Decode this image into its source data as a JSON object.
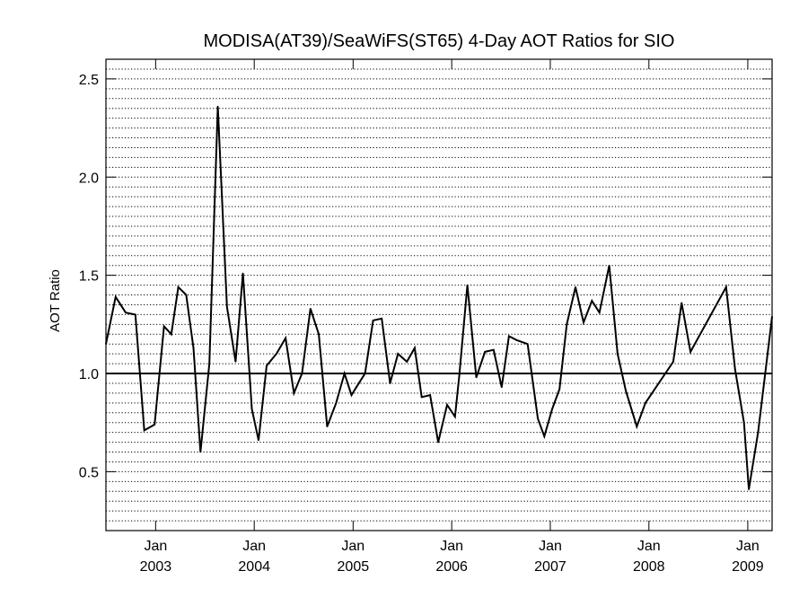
{
  "chart_data": {
    "type": "line",
    "title": "MODISA(AT39)/SeaWiFS(ST65) 4-Day AOT Ratios for SIO",
    "xlabel": "",
    "ylabel": "AOT Ratio",
    "xlim": [
      "2002-07-01",
      "2009-04-01"
    ],
    "ylim": [
      0.2,
      2.6
    ],
    "y_ticks": [
      0.5,
      1.0,
      1.5,
      2.0,
      2.5
    ],
    "y_tick_labels": [
      "0.5",
      "1.0",
      "1.5",
      "2.0",
      "2.5"
    ],
    "x_ticks": [
      {
        "date": "2003-01-01",
        "month": "Jan",
        "year": "2003"
      },
      {
        "date": "2004-01-01",
        "month": "Jan",
        "year": "2004"
      },
      {
        "date": "2005-01-01",
        "month": "Jan",
        "year": "2005"
      },
      {
        "date": "2006-01-01",
        "month": "Jan",
        "year": "2006"
      },
      {
        "date": "2007-01-01",
        "month": "Jan",
        "year": "2007"
      },
      {
        "date": "2008-01-01",
        "month": "Jan",
        "year": "2008"
      },
      {
        "date": "2009-01-01",
        "month": "Jan",
        "year": "2009"
      }
    ],
    "reference_line": 1.0,
    "grid": "horizontal dotted every 0.05",
    "line_color": "#000000",
    "series": [
      {
        "x": [
          "2002-07-01",
          "2002-08-06",
          "2002-09-12",
          "2002-10-18",
          "2002-11-20",
          "2002-12-28",
          "2003-02-01",
          "2003-02-28",
          "2003-03-26",
          "2003-04-24",
          "2003-05-21",
          "2003-06-16",
          "2003-07-19",
          "2003-08-19",
          "2003-09-22",
          "2003-10-24",
          "2003-11-20",
          "2003-12-23",
          "2004-01-17",
          "2004-02-16",
          "2004-03-23",
          "2004-04-26",
          "2004-05-27",
          "2004-06-26",
          "2004-07-27",
          "2004-08-27",
          "2004-09-27",
          "2004-10-30",
          "2004-11-30",
          "2004-12-26",
          "2005-01-13",
          "2005-02-14",
          "2005-03-16",
          "2005-04-17",
          "2005-05-18",
          "2005-06-16",
          "2005-07-19",
          "2005-08-17",
          "2005-09-12",
          "2005-10-13",
          "2005-11-12",
          "2005-12-15",
          "2006-01-13",
          "2006-01-29",
          "2006-02-28",
          "2006-04-02",
          "2006-05-04",
          "2006-06-05",
          "2006-07-05",
          "2006-08-01",
          "2006-08-29",
          "2006-10-09",
          "2006-11-16",
          "2006-12-10",
          "2007-01-08",
          "2007-02-04",
          "2007-03-03",
          "2007-04-04",
          "2007-05-04",
          "2007-06-04",
          "2007-07-02",
          "2007-08-07",
          "2007-09-07",
          "2007-10-08",
          "2007-11-17",
          "2007-12-19",
          "2008-03-31",
          "2008-05-01",
          "2008-06-03",
          "2008-10-13",
          "2008-11-15",
          "2008-12-18",
          "2009-01-05",
          "2009-02-08",
          "2009-04-01"
        ],
        "values": [
          1.15,
          1.39,
          1.31,
          1.3,
          0.71,
          0.74,
          1.24,
          1.2,
          1.44,
          1.4,
          1.13,
          0.6,
          1.05,
          2.36,
          1.34,
          1.06,
          1.51,
          0.82,
          0.66,
          1.04,
          1.1,
          1.18,
          0.9,
          1.0,
          1.33,
          1.2,
          0.73,
          0.85,
          1.0,
          0.89,
          0.93,
          1.0,
          1.27,
          1.28,
          0.95,
          1.1,
          1.06,
          1.13,
          0.88,
          0.89,
          0.65,
          0.84,
          0.78,
          0.99,
          1.45,
          0.98,
          1.11,
          1.12,
          0.93,
          1.19,
          1.17,
          1.15,
          0.77,
          0.68,
          0.82,
          0.92,
          1.25,
          1.44,
          1.26,
          1.37,
          1.31,
          1.55,
          1.1,
          0.91,
          0.73,
          0.85,
          1.06,
          1.36,
          1.11,
          1.44,
          1.02,
          0.75,
          0.41,
          0.7,
          1.29
        ]
      }
    ]
  }
}
